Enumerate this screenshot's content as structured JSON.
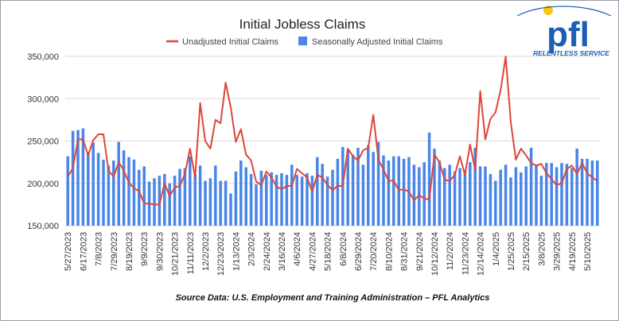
{
  "logo": {
    "text": "pfl",
    "tagline": "RELENTLESS SERVICE",
    "color": "#1a5fb4",
    "dot_color": "#f5c518"
  },
  "source_note": "Source Data: U.S. Employment and Training Administration – PFL Analytics",
  "colors": {
    "bar": "#4a86e8",
    "line": "#e0453a",
    "grid": "#d9d9d9"
  },
  "chart_data": {
    "type": "bar",
    "title": "Initial Jobless Claims",
    "legend_position": "top",
    "grid": true,
    "ylim": [
      150000,
      350000
    ],
    "yticks": [
      150000,
      200000,
      250000,
      300000,
      350000
    ],
    "ytick_labels": [
      "150,000",
      "200,000",
      "250,000",
      "300,000",
      "350,000"
    ],
    "xtick_labels": [
      "5/27/2023",
      "6/17/2023",
      "7/8/2023",
      "7/29/2023",
      "8/19/2023",
      "9/9/2023",
      "9/30/2023",
      "10/21/2023",
      "11/11/2023",
      "12/2/2023",
      "12/23/2023",
      "1/13/2024",
      "2/3/2024",
      "2/24/2024",
      "3/16/2024",
      "4/6/2024",
      "4/27/2024",
      "5/18/2024",
      "6/8/2024",
      "6/29/2024",
      "7/20/2024",
      "8/10/2024",
      "8/31/2024",
      "9/21/2024",
      "10/12/2024",
      "11/2/2024",
      "11/23/2024",
      "12/14/2024",
      "1/4/2025",
      "1/25/2025",
      "2/15/2025",
      "3/8/2025",
      "3/29/2025",
      "4/19/2025",
      "5/10/2025"
    ],
    "xtick_step": 3,
    "series": [
      {
        "name": "Unadjusted Initial Claims",
        "type": "line",
        "values": [
          208000,
          218000,
          252000,
          252000,
          233000,
          251000,
          258000,
          258000,
          215000,
          208000,
          225000,
          215000,
          201000,
          194000,
          191000,
          176000,
          176000,
          175000,
          175000,
          200000,
          185000,
          195000,
          197000,
          211000,
          241000,
          207000,
          295000,
          250000,
          241000,
          275000,
          271000,
          319000,
          290000,
          249000,
          264000,
          234000,
          227000,
          202000,
          198000,
          214000,
          207000,
          196000,
          193000,
          197000,
          197000,
          217000,
          212000,
          207000,
          190000,
          210000,
          207000,
          198000,
          192000,
          197000,
          197000,
          241000,
          232000,
          227000,
          239000,
          242000,
          281000,
          228000,
          216000,
          203000,
          203000,
          192000,
          193000,
          190000,
          180000,
          186000,
          182000,
          181000,
          234000,
          225000,
          204000,
          203000,
          210000,
          232000,
          210000,
          246000,
          216000,
          309000,
          252000,
          276000,
          284000,
          310000,
          350000,
          272000,
          228000,
          241000,
          233000,
          224000,
          221000,
          223000,
          212000,
          205000,
          198000,
          200000,
          217000,
          221000,
          211000,
          224000,
          212000,
          207000,
          203000
        ]
      },
      {
        "name": "Seasonally Adjusted Initial Claims",
        "type": "bar",
        "values": [
          232000,
          262000,
          263000,
          265000,
          237000,
          248000,
          236000,
          228000,
          221000,
          227000,
          249000,
          239000,
          231000,
          228000,
          216000,
          220000,
          202000,
          206000,
          209000,
          211000,
          200000,
          209000,
          217000,
          218000,
          232000,
          211000,
          221000,
          203000,
          206000,
          221000,
          203000,
          203000,
          188000,
          214000,
          227000,
          219000,
          211000,
          199000,
          215000,
          210000,
          213000,
          210000,
          212000,
          210000,
          222000,
          210000,
          208000,
          212000,
          209000,
          231000,
          223000,
          208000,
          216000,
          229000,
          243000,
          239000,
          234000,
          242000,
          222000,
          245000,
          237000,
          249000,
          233000,
          227000,
          232000,
          232000,
          229000,
          231000,
          222000,
          219000,
          225000,
          260000,
          241000,
          227000,
          218000,
          222000,
          214000,
          218000,
          216000,
          225000,
          242000,
          220000,
          220000,
          211000,
          203000,
          216000,
          222000,
          207000,
          219000,
          213000,
          220000,
          242000,
          221000,
          209000,
          224000,
          224000,
          219000,
          224000,
          223000,
          218000,
          241000,
          229000,
          229000,
          227000,
          227000
        ]
      }
    ]
  }
}
